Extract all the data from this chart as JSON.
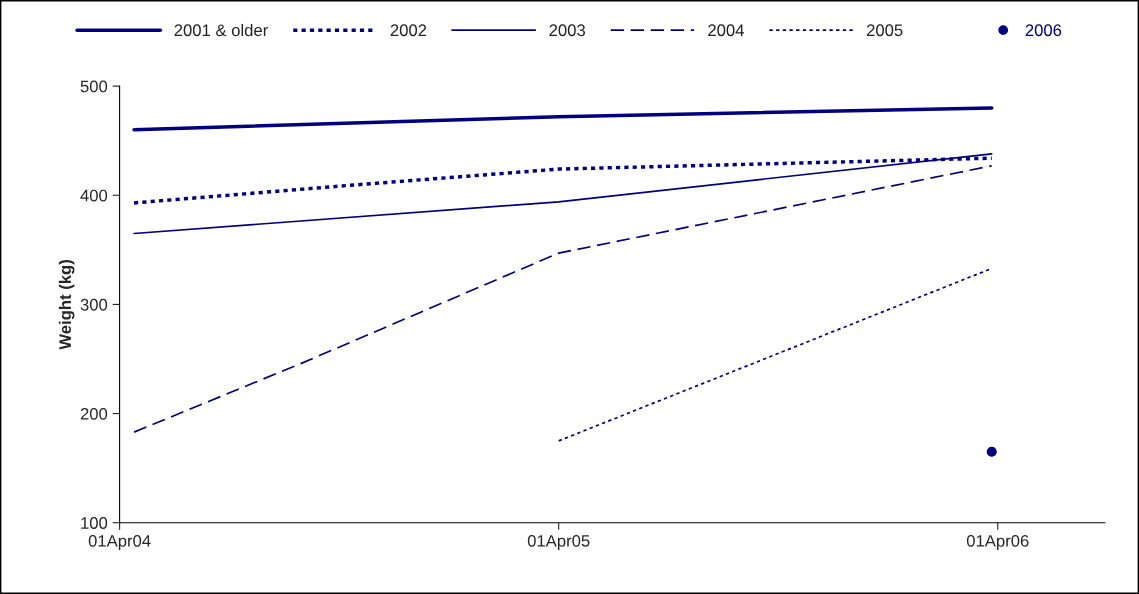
{
  "chart_data": {
    "type": "line",
    "ylabel": "Weight (kg)",
    "xlim": [
      "2004-04-01",
      "2006-06-29"
    ],
    "xticks": [
      {
        "value": "2004-04-01",
        "label": "01Apr04"
      },
      {
        "value": "2005-04-01",
        "label": "01Apr05"
      },
      {
        "value": "2006-04-01",
        "label": "01Apr06"
      }
    ],
    "ylim": [
      100,
      500
    ],
    "yticks": [
      100,
      200,
      300,
      400,
      500
    ],
    "grid": false,
    "legend": "top",
    "series": [
      {
        "name": "2001 & older",
        "color": "#000080",
        "line_style": "solid",
        "x": [
          "2004-04-13",
          "2005-04-01",
          "2006-03-27"
        ],
        "values": [
          460,
          472,
          480
        ]
      },
      {
        "name": "2002",
        "color": "#000080",
        "line_style": "dotted",
        "x": [
          "2004-04-13",
          "2004-10-08",
          "2005-04-01",
          "2006-03-27"
        ],
        "values": [
          393,
          409,
          424,
          434
        ]
      },
      {
        "name": "2003",
        "color": "#000080",
        "line_style": "solid",
        "x": [
          "2004-04-13",
          "2005-04-01",
          "2006-03-27"
        ],
        "values": [
          365,
          394,
          438
        ]
      },
      {
        "name": "2004",
        "color": "#000080",
        "line_style": "dashed",
        "x": [
          "2004-04-13",
          "2004-08-30",
          "2005-04-01",
          "2006-03-27"
        ],
        "values": [
          183,
          246,
          347,
          427
        ]
      },
      {
        "name": "2005",
        "color": "#000080",
        "line_style": "dotted",
        "x": [
          "2005-04-01",
          "2006-03-27"
        ],
        "values": [
          175,
          333
        ]
      },
      {
        "name": "2006",
        "color": "#000080",
        "type": "scatter",
        "marker": "circle",
        "x": [
          "2006-03-27"
        ],
        "values": [
          165
        ]
      }
    ]
  }
}
